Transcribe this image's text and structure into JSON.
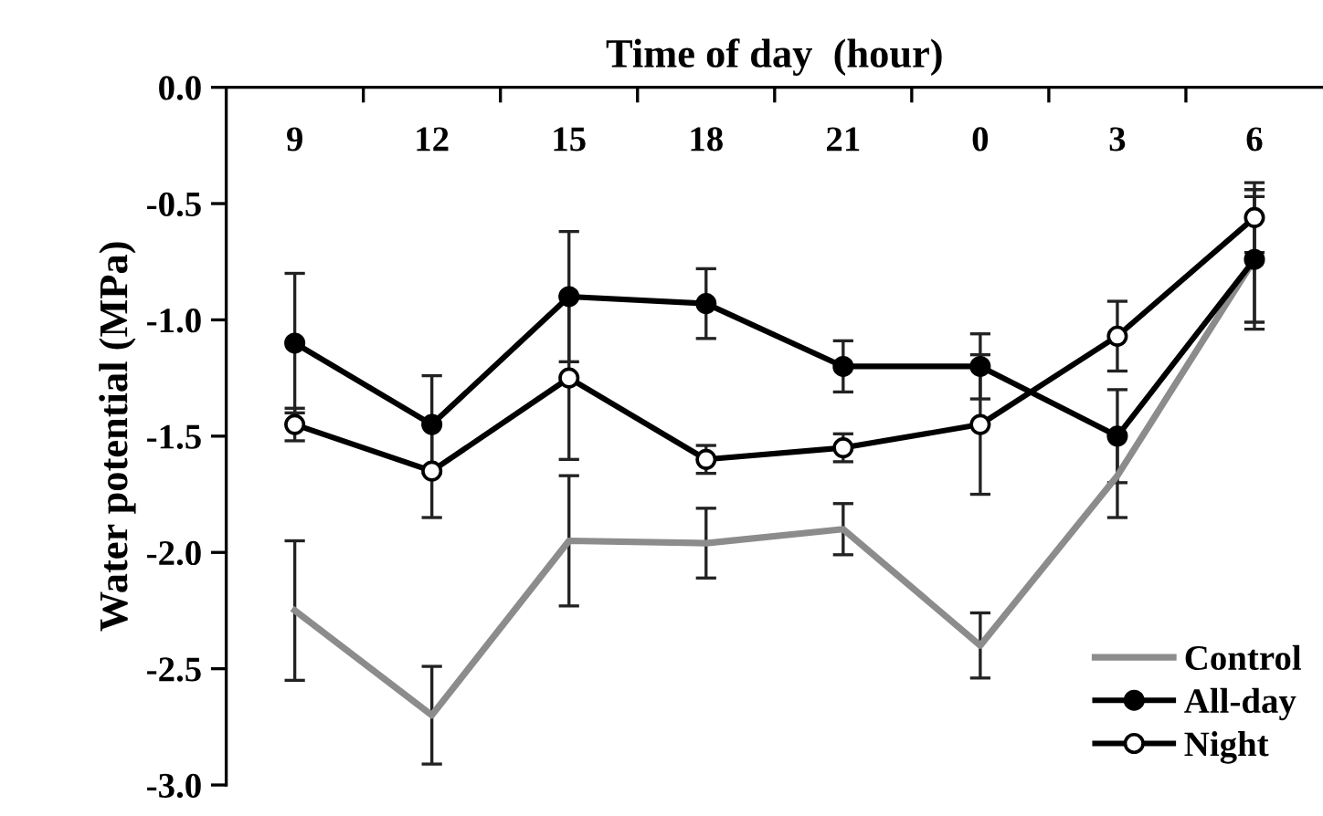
{
  "chart_data": {
    "type": "line",
    "xlabel": "Time of day  (hour)",
    "ylabel": "Water potential (MPa)",
    "categories": [
      "9",
      "12",
      "15",
      "18",
      "21",
      "0",
      "3",
      "6"
    ],
    "ylim": [
      -3.0,
      0.0
    ],
    "yticks": [
      {
        "value": -3.0,
        "label": "-3.0"
      },
      {
        "value": -2.5,
        "label": "-2.5"
      },
      {
        "value": -2.0,
        "label": "-2.0"
      },
      {
        "value": -1.5,
        "label": "-1.5"
      },
      {
        "value": -1.0,
        "label": "-1.0"
      },
      {
        "value": -0.5,
        "label": "-0.5"
      },
      {
        "value": 0.0,
        "label": "0.0"
      }
    ],
    "series": [
      {
        "name": "Control",
        "color": "#8c8c8c",
        "marker": "none",
        "values": [
          -2.25,
          -2.7,
          -1.95,
          -1.96,
          -1.9,
          -2.4,
          -1.67,
          -0.74
        ],
        "errors": [
          0.3,
          0.21,
          0.28,
          0.15,
          0.11,
          0.14,
          0.18,
          0.27
        ]
      },
      {
        "name": "All-day",
        "color": "#000000",
        "marker": "circle",
        "values": [
          -1.1,
          -1.45,
          -0.9,
          -0.93,
          -1.2,
          -1.2,
          -1.5,
          -0.74
        ],
        "errors": [
          0.3,
          0.21,
          0.28,
          0.15,
          0.11,
          0.14,
          0.2,
          0.3
        ]
      },
      {
        "name": "Night",
        "color": "#000000",
        "marker": "circle_open",
        "values": [
          -1.45,
          -1.65,
          -1.25,
          -1.6,
          -1.55,
          -1.45,
          -1.07,
          -0.56
        ],
        "errors": [
          0.07,
          0.2,
          0.35,
          0.06,
          0.06,
          0.3,
          0.15,
          0.15
        ]
      }
    ],
    "grid": false,
    "legend": "bottom right"
  }
}
